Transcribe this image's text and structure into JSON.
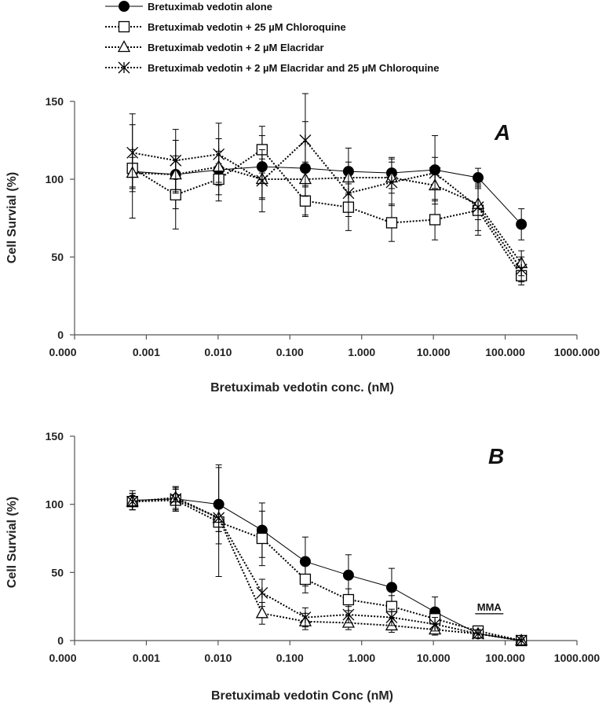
{
  "chart_data": [
    {
      "type": "line",
      "panel_label": "A",
      "xscale": "log",
      "xlabel": "Bretuximab vedotin conc. (nM)",
      "ylabel": "Cell  Survial (%)",
      "xlim": [
        0.0001,
        1000
      ],
      "ylim": [
        0,
        150
      ],
      "x_ticks": [
        0.0001,
        0.001,
        0.01,
        0.1,
        1,
        10,
        100,
        1000
      ],
      "x_tick_labels": [
        "0.000",
        "0.001",
        "0.010",
        "0.100",
        "1.000",
        "10.000",
        "100.000",
        "1000.000"
      ],
      "y_ticks": [
        0,
        50,
        100,
        150
      ],
      "y_tick_labels": [
        "0",
        "50",
        "100",
        "150"
      ],
      "x": [
        0.00064,
        0.00256,
        0.0102,
        0.041,
        0.164,
        0.655,
        2.62,
        10.5,
        41.9,
        168
      ],
      "series": [
        {
          "name": "Bretuximab vedotin alone",
          "marker": "circle-filled",
          "line": "solid",
          "values": [
            105,
            103,
            106,
            108,
            107,
            105,
            104,
            106,
            101,
            71
          ],
          "errors": [
            30,
            22,
            20,
            20,
            30,
            15,
            10,
            22,
            6,
            10
          ]
        },
        {
          "name": "Bretuximab vedotin + 25 µM Chloroquine",
          "marker": "square-open",
          "line": "dotted",
          "values": [
            107,
            90,
            100,
            119,
            86,
            82,
            72,
            74,
            80,
            38
          ],
          "errors": [
            12,
            22,
            10,
            15,
            10,
            15,
            12,
            13,
            16,
            6
          ]
        },
        {
          "name": "Bretuximab vedotin + 2 µM Elacridar",
          "marker": "triangle-open",
          "line": "dotted",
          "values": [
            104,
            103,
            108,
            100,
            100,
            101,
            101,
            96,
            84,
            46
          ],
          "errors": [
            10,
            12,
            10,
            13,
            11,
            10,
            10,
            10,
            10,
            8
          ]
        },
        {
          "name": "Bretuximab vedotin + 2 µM Elacridar and 25 µM Chloroquine",
          "marker": "star",
          "line": "dotted",
          "values": [
            117,
            112,
            116,
            99,
            125,
            91,
            98,
            104,
            82,
            42
          ],
          "errors": [
            25,
            20,
            20,
            20,
            30,
            15,
            15,
            10,
            15,
            8
          ]
        }
      ]
    },
    {
      "type": "line",
      "panel_label": "B",
      "xscale": "log",
      "xlabel": "Bretuximab vedotin Conc (nM)",
      "ylabel": "Cell  Survial (%)",
      "xlim": [
        0.0001,
        1000
      ],
      "ylim": [
        0,
        150
      ],
      "x_ticks": [
        0.0001,
        0.001,
        0.01,
        0.1,
        1,
        10,
        100,
        1000
      ],
      "x_tick_labels": [
        "0.000",
        "0.001",
        "0.010",
        "0.100",
        "1.000",
        "10.000",
        "100.000",
        "1000.000"
      ],
      "y_ticks": [
        0,
        50,
        100,
        150
      ],
      "y_tick_labels": [
        "0",
        "50",
        "100",
        "150"
      ],
      "annotation": "MMA",
      "x": [
        0.00064,
        0.00256,
        0.0102,
        0.041,
        0.164,
        0.655,
        2.62,
        10.5,
        41.9,
        168
      ],
      "series": [
        {
          "name": "Bretuximab vedotin alone",
          "marker": "circle-filled",
          "line": "solid",
          "values": [
            103,
            104,
            100,
            81,
            58,
            48,
            39,
            21,
            5,
            0
          ],
          "errors": [
            7,
            9,
            29,
            20,
            18,
            15,
            14,
            11,
            3,
            1
          ]
        },
        {
          "name": "Bretuximab vedotin + 25 µM Chloroquine",
          "marker": "square-open",
          "line": "dotted",
          "values": [
            102,
            103,
            87,
            75,
            45,
            30,
            25,
            16,
            7,
            0
          ],
          "errors": [
            6,
            8,
            40,
            20,
            10,
            8,
            8,
            6,
            3,
            1
          ]
        },
        {
          "name": "Bretuximab vedotin + 2 µM Elacridar",
          "marker": "triangle-open",
          "line": "dotted",
          "values": [
            102,
            105,
            90,
            20,
            14,
            13,
            11,
            8,
            5,
            0
          ],
          "errors": [
            6,
            8,
            10,
            8,
            6,
            5,
            5,
            4,
            3,
            1
          ]
        },
        {
          "name": "Bretuximab vedotin + 2 µM Elacridar and 25 µM Chloroquine",
          "marker": "star",
          "line": "dotted",
          "values": [
            102,
            104,
            90,
            35,
            17,
            19,
            17,
            12,
            5,
            0
          ],
          "errors": [
            6,
            8,
            10,
            10,
            7,
            6,
            6,
            5,
            3,
            1
          ]
        }
      ]
    }
  ]
}
